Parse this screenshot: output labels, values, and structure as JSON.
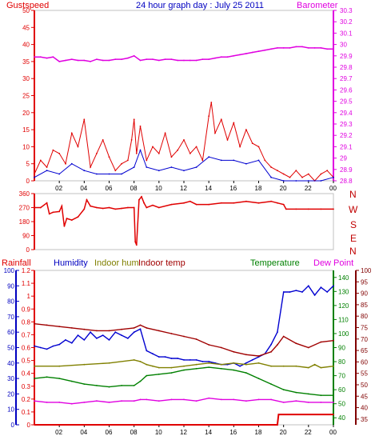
{
  "chart_data": [
    {
      "type": "line",
      "id": "wind_baro",
      "title": "24 hour graph day : July 25 2011",
      "left_label": "Gustspeed",
      "right_label": "Barometer",
      "colors": {
        "left": "#e00000",
        "right": "#e000e0",
        "title": "#0000c0"
      },
      "x_ticks": [
        "02",
        "04",
        "06",
        "08",
        "10",
        "12",
        "14",
        "16",
        "18",
        "20",
        "22",
        "00"
      ],
      "left_ticks": [
        "0",
        "5",
        "10",
        "15",
        "20",
        "25",
        "30",
        "35",
        "40",
        "45",
        "50"
      ],
      "left_ylim": [
        0,
        50
      ],
      "right_ticks": [
        "28.8",
        "28.9",
        "29",
        "29.1",
        "29.2",
        "29.3",
        "29.4",
        "29.5",
        "29.6",
        "29.7",
        "29.8",
        "29.9",
        "30",
        "30.1",
        "30.2",
        "30.3"
      ],
      "right_ylim": [
        28.8,
        30.3
      ],
      "series": [
        {
          "key": "gust",
          "color": "#e00000",
          "x": [
            0,
            0.5,
            1,
            1.5,
            2,
            2.5,
            3,
            3.5,
            4,
            4.5,
            5,
            5.5,
            6,
            6.5,
            7,
            7.5,
            7.8,
            8,
            8.2,
            8.5,
            9,
            9.5,
            10,
            10.5,
            11,
            11.5,
            12,
            12.5,
            13,
            13.5,
            14,
            14.2,
            14.5,
            15,
            15.5,
            16,
            16.5,
            17,
            17.5,
            18,
            18.5,
            19,
            19.5,
            20,
            20.5,
            21,
            21.5,
            22,
            22.5,
            23,
            23.5,
            24
          ],
          "values": [
            2,
            6,
            4,
            9,
            8,
            5,
            14,
            10,
            18,
            4,
            8,
            12,
            7,
            3,
            5,
            6,
            12,
            18,
            8,
            16,
            6,
            10,
            8,
            14,
            7,
            9,
            12,
            8,
            10,
            6,
            19,
            23,
            14,
            18,
            12,
            17,
            10,
            15,
            11,
            10,
            6,
            4,
            3,
            2,
            1,
            3,
            1,
            2,
            0,
            2,
            3,
            1
          ]
        },
        {
          "key": "avg",
          "color": "#0000d0",
          "x": [
            0,
            1,
            2,
            3,
            4,
            5,
            6,
            7,
            8,
            8.5,
            9,
            10,
            11,
            12,
            13,
            14,
            15,
            16,
            17,
            18,
            19,
            20,
            21,
            22,
            23,
            24
          ],
          "values": [
            1,
            3,
            2,
            5,
            3,
            2,
            2,
            2,
            4,
            9,
            4,
            3,
            4,
            3,
            4,
            7,
            6,
            6,
            5,
            6,
            1,
            0,
            0,
            0,
            0,
            1
          ]
        },
        {
          "key": "baro",
          "color": "#e000e0",
          "x": [
            0,
            0.5,
            1,
            1.5,
            2,
            2.5,
            3,
            3.5,
            4,
            4.5,
            5,
            5.5,
            6,
            6.5,
            7,
            7.5,
            8,
            8.5,
            9,
            9.5,
            10,
            10.5,
            11,
            11.5,
            12,
            12.5,
            13,
            13.5,
            14,
            14.5,
            15,
            15.5,
            16,
            16.5,
            17,
            17.5,
            18,
            18.5,
            19,
            19.5,
            20,
            20.5,
            21,
            21.5,
            22,
            22.5,
            23,
            23.5,
            24
          ],
          "values": [
            29.89,
            29.89,
            29.88,
            29.89,
            29.85,
            29.86,
            29.87,
            29.86,
            29.86,
            29.85,
            29.87,
            29.86,
            29.86,
            29.87,
            29.87,
            29.88,
            29.9,
            29.86,
            29.87,
            29.87,
            29.86,
            29.87,
            29.87,
            29.86,
            29.86,
            29.86,
            29.86,
            29.87,
            29.87,
            29.88,
            29.89,
            29.89,
            29.9,
            29.91,
            29.92,
            29.93,
            29.94,
            29.95,
            29.96,
            29.97,
            29.97,
            29.97,
            29.98,
            29.98,
            29.97,
            29.97,
            29.97,
            29.96,
            29.96
          ]
        }
      ]
    },
    {
      "type": "line",
      "id": "wind_dir",
      "y_ticks": [
        "0",
        "90",
        "180",
        "270",
        "360"
      ],
      "ylim": [
        0,
        360
      ],
      "compass": [
        "N",
        "W",
        "S",
        "E",
        "N"
      ],
      "series": [
        {
          "key": "dir",
          "color": "#e00000",
          "x": [
            0,
            0.5,
            1,
            1.2,
            1.5,
            2,
            2.2,
            2.4,
            2.6,
            3,
            3.5,
            4,
            4.2,
            4.5,
            5,
            5.5,
            6,
            6.5,
            7,
            7.5,
            8,
            8.1,
            8.2,
            8.4,
            8.6,
            8.8,
            9,
            9.5,
            10,
            11,
            12,
            12.5,
            13,
            14,
            15,
            16,
            17,
            18,
            19,
            19.5,
            20,
            20.2,
            21,
            22,
            23,
            24
          ],
          "values": [
            270,
            270,
            300,
            230,
            240,
            245,
            280,
            150,
            200,
            190,
            210,
            260,
            320,
            280,
            270,
            265,
            270,
            260,
            265,
            270,
            270,
            50,
            30,
            320,
            340,
            300,
            270,
            285,
            270,
            290,
            300,
            310,
            290,
            290,
            300,
            300,
            310,
            300,
            310,
            300,
            290,
            260,
            260,
            260,
            260,
            260
          ]
        }
      ]
    },
    {
      "type": "line",
      "id": "temp_hum",
      "legend": [
        "Rainfall",
        "Humidity",
        "Indoor hum",
        "Indoor temp",
        "Temperature",
        "Dew Point"
      ],
      "legend_colors": [
        "#e00000",
        "#0000c0",
        "#808000",
        "#a00000",
        "#008000",
        "#e000e0"
      ],
      "rain_ticks": [
        "0",
        "0.1",
        "0.2",
        "0.3",
        "0.4",
        "0.5",
        "0.6",
        "0.7",
        "0.8",
        "0.9",
        "1",
        "1.1",
        "1.2"
      ],
      "rain_ylim": [
        0,
        1.2
      ],
      "hum_ticks": [
        "0",
        "10",
        "20",
        "30",
        "40",
        "50",
        "60",
        "70",
        "80",
        "90",
        "100"
      ],
      "hum_ylim": [
        0,
        100
      ],
      "temp_ticks": [
        "40",
        "50",
        "60",
        "70",
        "80",
        "90",
        "100",
        "110",
        "120",
        "130",
        "140"
      ],
      "temp_ylim": [
        35,
        145
      ],
      "t_ticks": [
        "35",
        "40",
        "45",
        "50",
        "55",
        "60",
        "65",
        "70",
        "75",
        "80",
        "85",
        "90",
        "95",
        "100"
      ],
      "t_ylim": [
        32.5,
        100
      ],
      "x_ticks": [
        "02",
        "04",
        "06",
        "08",
        "10",
        "12",
        "14",
        "16",
        "18",
        "20",
        "22",
        "00"
      ],
      "series": [
        {
          "key": "rain",
          "axis": "rain",
          "color": "#e00000",
          "x": [
            0,
            19.5,
            19.6,
            24
          ],
          "values": [
            0,
            0,
            0.08,
            0.08
          ]
        },
        {
          "key": "hum",
          "axis": "hum",
          "color": "#0000d0",
          "x": [
            0,
            0.5,
            1,
            1.5,
            2,
            2.5,
            3,
            3.5,
            4,
            4.5,
            5,
            5.5,
            6,
            6.5,
            7,
            7.5,
            8,
            8.5,
            9,
            9.5,
            10,
            10.5,
            11,
            11.5,
            12,
            12.5,
            13,
            13.5,
            14,
            14.5,
            15,
            15.5,
            16,
            16.5,
            17,
            17.5,
            18,
            18.5,
            19,
            19.5,
            20,
            20.5,
            21,
            21.5,
            22,
            22.5,
            23,
            23.5,
            24
          ],
          "values": [
            51,
            50,
            49,
            51,
            52,
            55,
            53,
            58,
            55,
            60,
            56,
            58,
            55,
            60,
            58,
            56,
            60,
            62,
            48,
            46,
            44,
            44,
            43,
            43,
            42,
            42,
            42,
            41,
            41,
            40,
            39,
            39,
            40,
            38,
            40,
            42,
            44,
            46,
            52,
            60,
            86,
            86,
            87,
            86,
            90,
            84,
            89,
            86,
            90
          ]
        },
        {
          "key": "indoor_hum",
          "axis": "hum",
          "color": "#808000",
          "x": [
            0,
            2,
            4,
            6,
            8,
            8.5,
            9,
            9.5,
            10,
            11,
            12,
            13,
            14,
            15,
            16,
            17,
            18,
            19,
            20,
            21,
            22,
            22.5,
            23,
            24
          ],
          "values": [
            38,
            38,
            39,
            40,
            42,
            41,
            39,
            38,
            37,
            37,
            38,
            39,
            40,
            39,
            40,
            39,
            40,
            38,
            38,
            38,
            37,
            39,
            37,
            38
          ]
        },
        {
          "key": "indoor_temp",
          "axis": "temp",
          "color": "#a00000",
          "x": [
            0,
            1,
            2,
            3,
            4,
            5,
            6,
            7,
            8,
            8.5,
            9,
            10,
            11,
            12,
            13,
            14,
            15,
            16,
            17,
            18,
            19,
            19.5,
            20,
            21,
            22,
            23,
            24
          ],
          "values": [
            107,
            106,
            105,
            104,
            103,
            102,
            102,
            103,
            104,
            106,
            104,
            102,
            100,
            98,
            96,
            92,
            90,
            87,
            85,
            84,
            87,
            92,
            98,
            93,
            90,
            94,
            95
          ]
        },
        {
          "key": "temperature",
          "axis": "temp",
          "color": "#008000",
          "x": [
            0,
            1,
            2,
            3,
            4,
            5,
            6,
            7,
            8,
            8.5,
            9,
            10,
            11,
            12,
            13,
            14,
            15,
            16,
            17,
            18,
            19,
            20,
            21,
            22,
            23,
            24
          ],
          "values": [
            68,
            69,
            68,
            66,
            64,
            63,
            62,
            63,
            63,
            66,
            70,
            71,
            72,
            74,
            75,
            76,
            75,
            74,
            72,
            68,
            64,
            60,
            58,
            57,
            56,
            56
          ]
        },
        {
          "key": "dew_point",
          "axis": "temp",
          "color": "#e000e0",
          "x": [
            0,
            1,
            2,
            3,
            4,
            5,
            6,
            7,
            8,
            8.5,
            9,
            10,
            11,
            12,
            13,
            14,
            15,
            16,
            17,
            18,
            19,
            20,
            21,
            22,
            23,
            24
          ],
          "values": [
            52,
            51,
            51,
            50,
            51,
            52,
            51,
            52,
            52,
            53,
            53,
            52,
            53,
            53,
            52,
            54,
            53,
            53,
            52,
            53,
            53,
            51,
            52,
            51,
            51,
            51
          ]
        }
      ]
    }
  ]
}
